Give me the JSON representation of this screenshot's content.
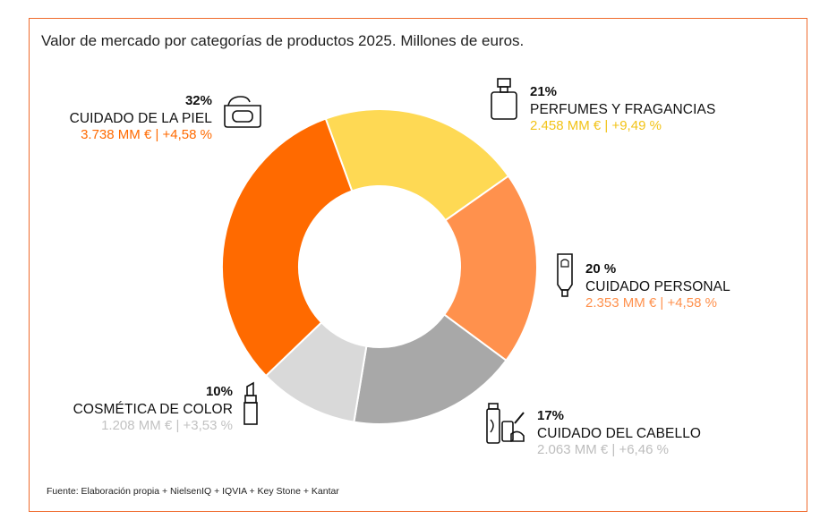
{
  "title": "Valor de mercado por categorías de productos 2025. Millones de euros.",
  "source": "Fuente: Elaboración propia + NielsenIQ + IQVIA + Key Stone + Kantar",
  "chart_data": {
    "type": "pie",
    "title": "Valor de mercado por categorías de productos 2025. Millones de euros.",
    "donut": true,
    "unit": "MM €",
    "categories": [
      "PERFUMES Y FRAGANCIAS",
      "CUIDADO PERSONAL",
      "CUIDADO DEL CABELLO",
      "COSMÉTICA DE COLOR",
      "CUIDADO DE LA PIEL"
    ],
    "values": [
      2458,
      2353,
      2063,
      1208,
      3738
    ],
    "slices": [
      {
        "name": "PERFUMES Y FRAGANCIAS",
        "pct_label": "21%",
        "value": 2458,
        "value_label": "2.458 MM €",
        "growth_label": "+9,49 %",
        "color": "#fed954",
        "value_color": "#f2c318",
        "icon": "perfume-bottle-icon"
      },
      {
        "name": "CUIDADO PERSONAL",
        "pct_label": "20 %",
        "value": 2353,
        "value_label": "2.353 MM €",
        "growth_label": "+4,58 %",
        "color": "#ff914d",
        "value_color": "#ff914d",
        "icon": "toothpaste-tube-icon"
      },
      {
        "name": "CUIDADO DEL CABELLO",
        "pct_label": "17%",
        "value": 2063,
        "value_label": "2.063 MM €",
        "growth_label": "+6,46 %",
        "color": "#a8a8a8",
        "value_color": "#bdbdbd",
        "icon": "hair-products-icon"
      },
      {
        "name": "COSMÉTICA DE COLOR",
        "pct_label": "10%",
        "value": 1208,
        "value_label": "1.208 MM €",
        "growth_label": "+3,53 %",
        "color": "#d9d9d9",
        "value_color": "#c2c2c2",
        "icon": "lipstick-icon"
      },
      {
        "name": "CUIDADO DE LA PIEL",
        "pct_label": "32%",
        "value": 3738,
        "value_label": "3.738 MM €",
        "growth_label": "+4,58 %",
        "color": "#ff6a00",
        "value_color": "#ff6a00",
        "icon": "cream-jar-icon"
      }
    ]
  }
}
